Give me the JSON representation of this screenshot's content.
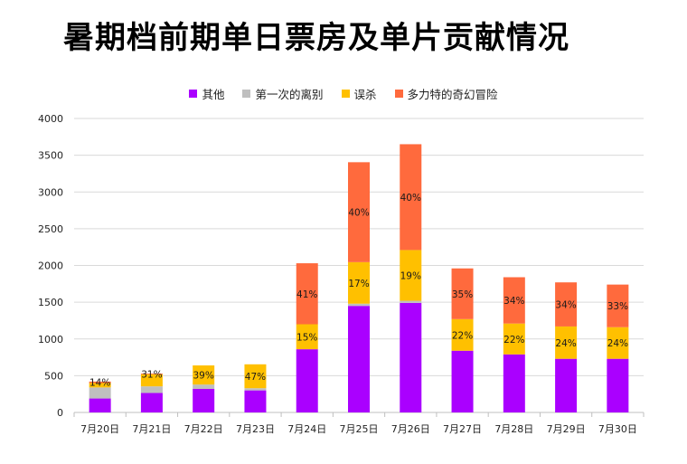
{
  "chart_data": {
    "type": "bar",
    "stacked": true,
    "title": "暑期档前期单日票房及单片贡献情况",
    "categories": [
      "7月20日",
      "7月21日",
      "7月22日",
      "7月23日",
      "7月24日",
      "7月25日",
      "7月26日",
      "7月27日",
      "7月28日",
      "7月29日",
      "7月30日"
    ],
    "series": [
      {
        "name": "其他",
        "color": "#aa00ff",
        "values": [
          190,
          265,
          320,
          300,
          860,
          1450,
          1490,
          840,
          790,
          730,
          730
        ]
      },
      {
        "name": "第一次的离别",
        "color": "#bfbfbf",
        "values": [
          150,
          90,
          60,
          30,
          0,
          30,
          30,
          0,
          0,
          0,
          0
        ]
      },
      {
        "name": "误杀",
        "color": "#ffc000",
        "values": [
          60,
          165,
          260,
          325,
          340,
          565,
          690,
          430,
          420,
          440,
          430
        ]
      },
      {
        "name": "多力特的奇幻冒险",
        "color": "#ff6a3d",
        "values": [
          20,
          10,
          0,
          0,
          830,
          1360,
          1440,
          690,
          630,
          600,
          580
        ]
      }
    ],
    "data_labels": [
      "14%",
      "31%",
      "39%",
      "47%",
      "41%",
      "40%",
      "40%",
      "35%",
      "34%",
      "34%",
      "33%"
    ],
    "inner_labels": [
      "",
      "",
      "",
      "",
      "15%",
      "17%",
      "19%",
      "22%",
      "22%",
      "24%",
      "24%"
    ],
    "ylim": [
      0,
      4000
    ],
    "yticks": [
      0,
      500,
      1000,
      1500,
      2000,
      2500,
      3000,
      3500,
      4000
    ],
    "legend_position": "top",
    "grid": true
  }
}
